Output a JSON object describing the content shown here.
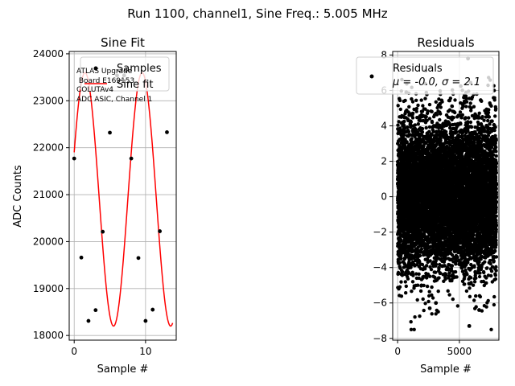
{
  "suptitle": "Run 1100, channel1, Sine Freq.: 5.005 MHz",
  "colors": {
    "fit": "#ff0000",
    "points": "#000000",
    "grid": "#b0b0b0"
  },
  "chart_data": [
    {
      "type": "scatter",
      "title": "Sine Fit",
      "xlabel": "Sample #",
      "ylabel": "ADC Counts",
      "xlim": [
        -0.7,
        14.3
      ],
      "ylim": [
        17900,
        24050
      ],
      "xticks": [
        0,
        10
      ],
      "yticks": [
        18000,
        19000,
        20000,
        21000,
        22000,
        23000,
        24000
      ],
      "grid": true,
      "legend_position": "top-right",
      "annotation": [
        "ATLAS Upgrade",
        " Board E169153",
        "COLUTAv4",
        "ADC ASIC, Channel 1"
      ],
      "series": [
        {
          "name": "Samples",
          "marker": "point",
          "x": [
            0,
            1,
            2,
            3,
            4,
            5,
            6,
            7,
            8,
            9,
            10,
            11,
            12,
            13
          ],
          "y": [
            21770,
            19660,
            18310,
            18540,
            20210,
            22320,
            23540,
            23540,
            21770,
            19650,
            18310,
            18550,
            20220,
            22330
          ]
        },
        {
          "name": "Sine fit",
          "kind": "line",
          "model": {
            "offset": 20900,
            "amplitude": 2700,
            "period_samples": 8.0,
            "phase_rad": 0.38
          },
          "x_range": [
            0,
            13.8
          ]
        }
      ]
    },
    {
      "type": "scatter",
      "title": "Residuals",
      "xlabel": "Sample #",
      "xlim": [
        -400,
        8200
      ],
      "ylim": [
        -8.1,
        8.2
      ],
      "xticks": [
        0,
        5000
      ],
      "yticks": [
        -8,
        -6,
        -4,
        -2,
        0,
        2,
        4,
        6,
        8
      ],
      "grid": true,
      "legend_position": "top-right",
      "series": [
        {
          "name": "Residuals",
          "legend_stats": "μ = -0.0, σ = 2.1",
          "n_points": 8000,
          "mean": 0.0,
          "std": 2.1,
          "x_range": [
            0,
            7999
          ],
          "outliers": [
            [
              5700,
              7.8
            ],
            [
              5800,
              -7.3
            ],
            [
              700,
              5.9
            ],
            [
              2600,
              -6.3
            ],
            [
              6600,
              -6.4
            ],
            [
              3100,
              -6.0
            ]
          ]
        }
      ]
    }
  ]
}
